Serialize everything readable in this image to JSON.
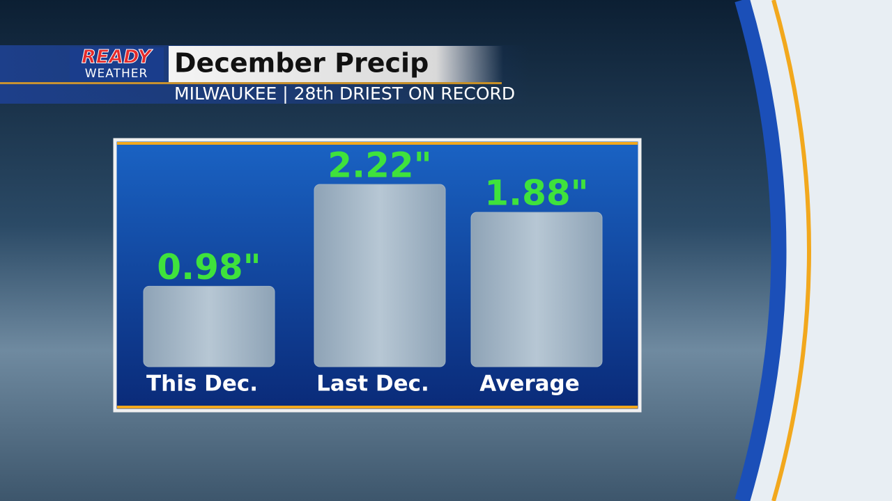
{
  "branding": {
    "logo_top": "READY",
    "logo_bottom": "WEATHER"
  },
  "chart_data": {
    "type": "bar",
    "title": "December Precip",
    "subtitle": "MILWAUKEE | 28th DRIEST ON RECORD",
    "categories": [
      "This Dec.",
      "Last Dec.",
      "Average"
    ],
    "values": [
      0.98,
      2.22,
      1.88
    ],
    "value_labels": [
      "0.98\"",
      "2.22\"",
      "1.88\""
    ],
    "color": "#9fb2c2"
  }
}
